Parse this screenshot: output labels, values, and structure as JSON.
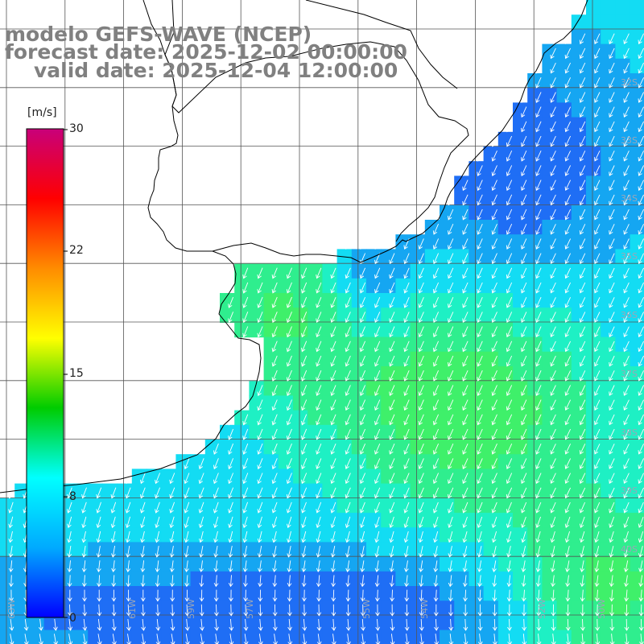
{
  "title": {
    "line1": "modelo GEFS-WAVE (NCEP)",
    "line2": "forecast date: 2025-12-02 00:00:00",
    "line3": "valid date: 2025-12-04 12:00:00"
  },
  "colorbar": {
    "unit": "[m/s]",
    "ticks": [
      "30",
      "22",
      "15",
      "8",
      "0"
    ],
    "colors": [
      "#c8007a",
      "#ff0000",
      "#ff8c00",
      "#ffff00",
      "#00cc00",
      "#00ffff",
      "#00aaff",
      "#0000ff"
    ]
  },
  "lat_labels": [
    "32S",
    "33S",
    "34S",
    "35S",
    "36S",
    "37S",
    "38S",
    "39S",
    "40S"
  ],
  "lon_labels": [
    "63W",
    "61W",
    "59W",
    "57W",
    "55W",
    "54W",
    "52W",
    "50W"
  ],
  "field": {
    "quantity": "wind speed",
    "palette": {
      "deep_blue": "#1a3cf0",
      "blue": "#1f6ef5",
      "sky": "#15a6f2",
      "cyan": "#13dcf3",
      "aqua_green": "#1ef0c4",
      "green": "#2fee8e",
      "bright_green": "#3ff06a"
    },
    "land_color": "#ffffff",
    "coastline_color": "#000000",
    "grid_color": "#555555",
    "arrow_color": "#ffffff"
  }
}
